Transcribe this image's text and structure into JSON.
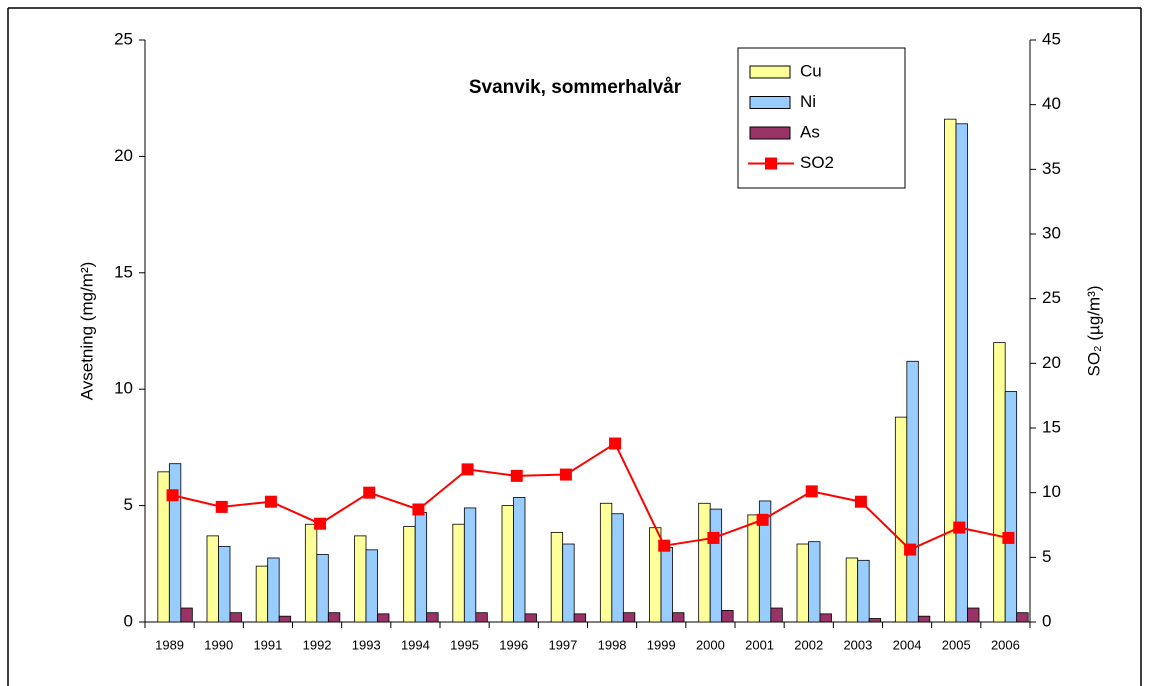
{
  "chart_data": {
    "type": "bar",
    "title": "Svanvik, sommerhalvår",
    "y_label": "Avsetning (mg/m²)",
    "y2_label": "SO₂ (µg/m³)",
    "categories": [
      "1989",
      "1990",
      "1991",
      "1992",
      "1993",
      "1994",
      "1995",
      "1996",
      "1997",
      "1998",
      "1999",
      "2000",
      "2001",
      "2002",
      "2003",
      "2004",
      "2005",
      "2006"
    ],
    "series": [
      {
        "name": "Cu",
        "type": "bar",
        "color": "#ffff99",
        "values": [
          6.45,
          3.7,
          2.4,
          4.2,
          3.7,
          4.1,
          4.2,
          5.0,
          3.85,
          5.1,
          4.05,
          5.1,
          4.6,
          3.35,
          2.75,
          8.8,
          21.6,
          12.0
        ]
      },
      {
        "name": "Ni",
        "type": "bar",
        "color": "#99ccff",
        "values": [
          6.8,
          3.25,
          2.75,
          2.9,
          3.1,
          4.7,
          4.9,
          5.35,
          3.35,
          4.65,
          3.2,
          4.85,
          5.2,
          3.45,
          2.65,
          11.2,
          21.4,
          9.9
        ]
      },
      {
        "name": "As",
        "type": "bar",
        "color": "#993366",
        "values": [
          0.6,
          0.4,
          0.25,
          0.4,
          0.35,
          0.4,
          0.4,
          0.35,
          0.35,
          0.4,
          0.4,
          0.5,
          0.6,
          0.35,
          0.15,
          0.25,
          0.6,
          0.4
        ]
      },
      {
        "name": "SO2",
        "type": "line",
        "axis": "y2",
        "color": "#ff0000",
        "values": [
          9.8,
          8.9,
          9.3,
          7.6,
          10.0,
          8.7,
          11.8,
          11.3,
          11.4,
          13.8,
          5.9,
          6.5,
          7.9,
          10.1,
          9.3,
          5.6,
          7.3,
          6.5
        ]
      }
    ],
    "ylim": [
      0,
      25
    ],
    "yticks": [
      0,
      5,
      10,
      15,
      20,
      25
    ],
    "y2lim": [
      0,
      45
    ],
    "y2ticks": [
      0,
      5,
      10,
      15,
      20,
      25,
      30,
      35,
      40,
      45
    ],
    "legend": "top-right"
  }
}
